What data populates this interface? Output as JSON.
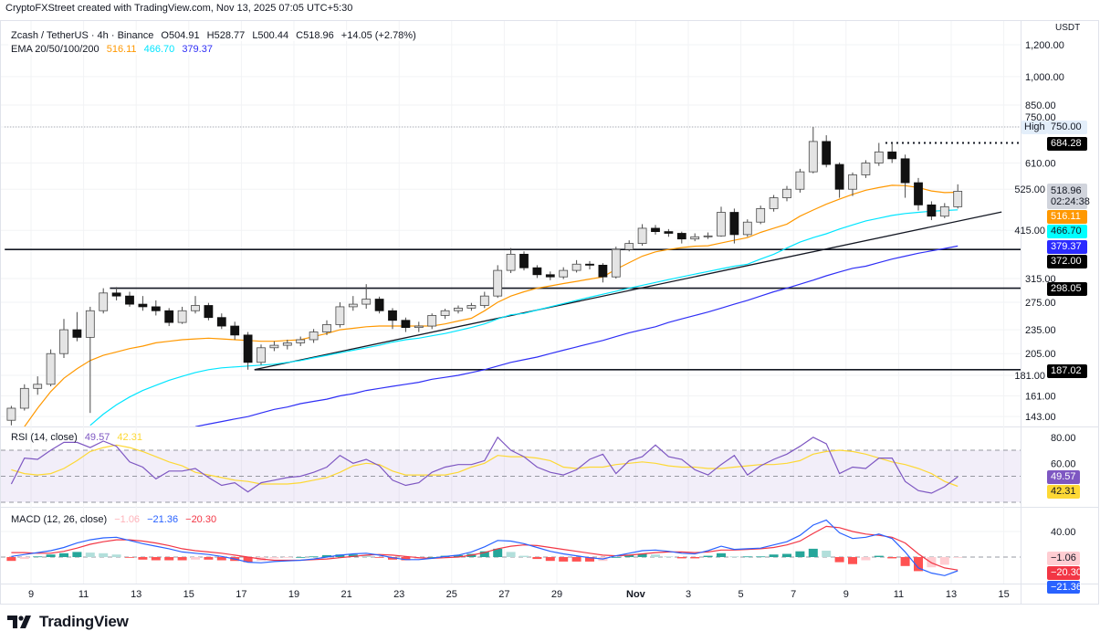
{
  "credit": "CryptoFXStreet created with TradingView.com, Nov 13, 2025 07:05 UTC+5:30",
  "legend": {
    "symbol": "Zcash / TetherUS · 4h · Binance",
    "open": "O504.91",
    "high": "H528.77",
    "low": "L500.44",
    "close": "C518.96",
    "change": "+14.05 (+2.78%)",
    "ema_label": "EMA 20/50/100/200",
    "ema20": "516.11",
    "ema100": "466.70",
    "ema200": "379.37"
  },
  "rsi_legend": {
    "label": "RSI (14, close)",
    "rsi": "49.57",
    "ma": "42.31"
  },
  "macd_legend": {
    "label": "MACD (12, 26, close)",
    "hist": "−1.06",
    "macd": "−21.36",
    "signal": "−20.30"
  },
  "price_axis": {
    "unit": "USDT",
    "ticks": [
      "1,200.00",
      "1,000.00",
      "850.00",
      "750.00",
      "610.00",
      "525.00",
      "415.00",
      "315.00",
      "275.00",
      "235.00",
      "205.00",
      "181.00",
      "161.00",
      "143.00"
    ]
  },
  "rsi_axis": {
    "ticks": [
      "80.00",
      "60.00"
    ]
  },
  "macd_axis": {
    "ticks": [
      "40.00"
    ]
  },
  "time_axis": {
    "labels": [
      "9",
      "11",
      "13",
      "15",
      "17",
      "19",
      "21",
      "23",
      "25",
      "27",
      "29",
      "Nov",
      "3",
      "5",
      "7",
      "9",
      "11",
      "13",
      "15"
    ]
  },
  "badges": {
    "high_label": "High",
    "high": "750.00",
    "level_684": "684.28",
    "last": "518.96",
    "countdown": "02:24:38",
    "ema20": "516.11",
    "ema100": "466.70",
    "ema200": "379.37",
    "level_372": "372.00",
    "level_298": "298.05",
    "level_187": "187.02",
    "rsi": "49.57",
    "rsi_ma": "42.31",
    "macd_hist": "−1.06",
    "macd_signal": "−20.30",
    "macd": "−21.36"
  },
  "colors": {
    "ema20": "#ff9800",
    "ema100": "#00e5ff",
    "ema200": "#2f2ff5",
    "rsi": "#7e57c2",
    "rsi_ma": "#fdd835",
    "macd": "#2962ff",
    "signal": "#f23645",
    "hist_up_strong": "#26a69a",
    "hist_up_weak": "#b2dfdb",
    "hist_down_strong": "#ff5252",
    "hist_down_weak": "#ffcdd2",
    "candle_up": "#e4e4e4",
    "candle_down": "#111111"
  },
  "logo": {
    "text": "TradingView"
  },
  "chart_data": {
    "type": "candlestick",
    "symbol": "Zcash / TetherUS",
    "timeframe": "4h",
    "y_scale": "log",
    "ylim": [
      136,
      1300
    ],
    "candles_ohlc": [
      [
        "Oct 8 00:00",
        140,
        152,
        136,
        150
      ],
      [
        "Oct 8 12:00",
        150,
        172,
        148,
        168
      ],
      [
        "Oct 9 00:00",
        168,
        180,
        162,
        172
      ],
      [
        "Oct 9 12:00",
        172,
        210,
        170,
        205
      ],
      [
        "Oct 10 00:00",
        205,
        250,
        200,
        235
      ],
      [
        "Oct 10 12:00",
        235,
        260,
        220,
        225
      ],
      [
        "Oct 11 00:00",
        225,
        268,
        146,
        262
      ],
      [
        "Oct 11 12:00",
        262,
        298,
        258,
        290
      ],
      [
        "Oct 12 00:00",
        290,
        300,
        278,
        285
      ],
      [
        "Oct 12 12:00",
        285,
        292,
        268,
        272
      ],
      [
        "Oct 13 00:00",
        272,
        285,
        262,
        268
      ],
      [
        "Oct 13 12:00",
        268,
        278,
        255,
        262
      ],
      [
        "Oct 14 00:00",
        262,
        266,
        240,
        245
      ],
      [
        "Oct 14 12:00",
        245,
        268,
        243,
        262
      ],
      [
        "Oct 15 00:00",
        262,
        285,
        258,
        270
      ],
      [
        "Oct 15 12:00",
        270,
        274,
        248,
        252
      ],
      [
        "Oct 16 00:00",
        252,
        258,
        236,
        240
      ],
      [
        "Oct 16 12:00",
        240,
        246,
        222,
        228
      ],
      [
        "Oct 17 00:00",
        228,
        232,
        187,
        195
      ],
      [
        "Oct 17 12:00",
        195,
        216,
        192,
        212
      ],
      [
        "Oct 18 00:00",
        212,
        220,
        208,
        215
      ],
      [
        "Oct 18 12:00",
        215,
        222,
        210,
        218
      ],
      [
        "Oct 19 00:00",
        218,
        226,
        214,
        222
      ],
      [
        "Oct 19 12:00",
        222,
        236,
        218,
        232
      ],
      [
        "Oct 20 00:00",
        232,
        248,
        228,
        242
      ],
      [
        "Oct 20 12:00",
        242,
        275,
        238,
        268
      ],
      [
        "Oct 21 00:00",
        268,
        285,
        262,
        272
      ],
      [
        "Oct 21 12:00",
        272,
        305,
        265,
        280
      ],
      [
        "Oct 22 00:00",
        280,
        284,
        258,
        262
      ],
      [
        "Oct 22 12:00",
        262,
        266,
        236,
        248
      ],
      [
        "Oct 23 00:00",
        248,
        252,
        232,
        238
      ],
      [
        "Oct 23 12:00",
        238,
        246,
        232,
        240
      ],
      [
        "Oct 24 00:00",
        240,
        258,
        236,
        255
      ],
      [
        "Oct 24 12:00",
        255,
        265,
        250,
        262
      ],
      [
        "Oct 25 00:00",
        262,
        270,
        258,
        266
      ],
      [
        "Oct 25 12:00",
        266,
        274,
        262,
        270
      ],
      [
        "Oct 26 00:00",
        270,
        292,
        266,
        285
      ],
      [
        "Oct 26 12:00",
        285,
        340,
        282,
        330
      ],
      [
        "Oct 27 00:00",
        330,
        375,
        325,
        362
      ],
      [
        "Oct 27 12:00",
        362,
        368,
        330,
        335
      ],
      [
        "Oct 28 00:00",
        335,
        340,
        316,
        322
      ],
      [
        "Oct 28 12:00",
        322,
        328,
        312,
        318
      ],
      [
        "Oct 29 00:00",
        318,
        336,
        314,
        330
      ],
      [
        "Oct 29 12:00",
        330,
        350,
        326,
        342
      ],
      [
        "Oct 30 00:00",
        342,
        348,
        332,
        340
      ],
      [
        "Oct 30 12:00",
        340,
        344,
        308,
        318
      ],
      [
        "Oct 31 00:00",
        318,
        378,
        315,
        372
      ],
      [
        "Oct 31 12:00",
        372,
        392,
        368,
        385
      ],
      [
        "Nov 1 00:00",
        385,
        430,
        380,
        420
      ],
      [
        "Nov 1 12:00",
        420,
        428,
        405,
        412
      ],
      [
        "Nov 2 00:00",
        412,
        418,
        400,
        408
      ],
      [
        "Nov 2 12:00",
        408,
        412,
        385,
        395
      ],
      [
        "Nov 3 00:00",
        395,
        408,
        390,
        400
      ],
      [
        "Nov 3 12:00",
        400,
        410,
        395,
        402
      ],
      [
        "Nov 4 00:00",
        402,
        475,
        400,
        460
      ],
      [
        "Nov 4 12:00",
        460,
        470,
        385,
        405
      ],
      [
        "Nov 5 00:00",
        405,
        442,
        400,
        435
      ],
      [
        "Nov 5 12:00",
        435,
        478,
        430,
        470
      ],
      [
        "Nov 6 00:00",
        470,
        508,
        462,
        500
      ],
      [
        "Nov 6 12:00",
        500,
        535,
        490,
        525
      ],
      [
        "Nov 7 00:00",
        525,
        590,
        515,
        580
      ],
      [
        "Nov 7 12:00",
        580,
        750,
        575,
        690
      ],
      [
        "Nov 8 00:00",
        690,
        715,
        595,
        605
      ],
      [
        "Nov 8 12:00",
        605,
        612,
        500,
        525
      ],
      [
        "Nov 9 00:00",
        525,
        578,
        505,
        570
      ],
      [
        "Nov 9 12:00",
        570,
        620,
        560,
        610
      ],
      [
        "Nov 10 00:00",
        610,
        684.28,
        600,
        650
      ],
      [
        "Nov 10 12:00",
        650,
        684,
        610,
        625
      ],
      [
        "Nov 11 00:00",
        625,
        640,
        500,
        545
      ],
      [
        "Nov 11 12:00",
        545,
        560,
        465,
        480
      ],
      [
        "Nov 12 00:00",
        480,
        490,
        440,
        450
      ],
      [
        "Nov 12 12:00",
        450,
        485,
        445,
        475
      ],
      [
        "Nov 13 00:00",
        475,
        540,
        470,
        518.96
      ]
    ],
    "ema20": [
      null,
      135,
      150,
      165,
      178,
      188,
      197,
      203,
      207,
      211,
      214,
      218,
      220,
      222,
      223,
      224,
      223,
      222,
      221,
      220,
      220,
      221,
      222,
      226,
      230,
      235,
      237,
      239,
      240,
      240,
      240,
      240,
      240,
      243,
      247,
      251,
      262,
      275,
      285,
      292,
      298,
      302,
      306,
      310,
      314,
      318,
      332,
      345,
      358,
      367,
      372,
      376,
      379,
      380,
      386,
      392,
      398,
      410,
      420,
      430,
      450,
      466,
      482,
      496,
      510,
      522,
      530,
      537,
      536,
      530,
      520,
      515,
      516.11
    ],
    "ema100": [
      null,
      null,
      null,
      null,
      null,
      null,
      136,
      145,
      153,
      160,
      166,
      171,
      176,
      180,
      184,
      187,
      189,
      190,
      191,
      192,
      193,
      195,
      197,
      200,
      203,
      206,
      209,
      212,
      215,
      219,
      222,
      224,
      227,
      230,
      234,
      238,
      243,
      250,
      256,
      258,
      263,
      268,
      273,
      278,
      283,
      288,
      293,
      298,
      303,
      308,
      313,
      318,
      323,
      328,
      333,
      338,
      342,
      352,
      362,
      375,
      388,
      398,
      407,
      418,
      428,
      438,
      445,
      452,
      457,
      460,
      463,
      465,
      466.7
    ],
    "ema200": [
      null,
      null,
      null,
      null,
      null,
      null,
      null,
      null,
      null,
      null,
      null,
      null,
      null,
      null,
      135,
      137,
      139,
      141,
      143,
      146,
      149,
      151,
      154,
      156,
      158,
      161,
      163,
      166,
      168,
      170,
      172,
      174,
      177,
      179,
      181,
      184,
      187,
      191,
      195,
      198,
      201,
      205,
      209,
      213,
      217,
      221,
      226,
      231,
      235,
      239,
      245,
      250,
      255,
      260,
      266,
      272,
      278,
      285,
      292,
      298,
      305,
      312,
      320,
      327,
      334,
      338,
      345,
      352,
      358,
      364,
      369,
      374,
      379.37
    ],
    "levels": [
      {
        "price": 750.0,
        "from": "Oct 8 00:00",
        "style": "dotted-grey"
      },
      {
        "price": 684.28,
        "from": "Nov 10 12:00",
        "style": "dotted"
      },
      {
        "price": 372.0,
        "from": "Oct 8 00:00",
        "style": "solid"
      },
      {
        "price": 298.05,
        "from": "Oct 12 00:00",
        "style": "solid"
      },
      {
        "price": 187.02,
        "from": "Oct 17 12:00",
        "style": "solid"
      }
    ],
    "trendline": {
      "from": {
        "time": "Oct 17 12:00",
        "price": 187.02
      },
      "to": {
        "time": "Nov 14 22:00",
        "price": 461
      }
    },
    "rsi": {
      "values": [
        44,
        64,
        63,
        70,
        76,
        76,
        72,
        77,
        73,
        61,
        57,
        48,
        54,
        54,
        56,
        49,
        43,
        45,
        38,
        45,
        47,
        49,
        50,
        53,
        57,
        66,
        60,
        63,
        58,
        47,
        43,
        45,
        53,
        57,
        59,
        59,
        62,
        80,
        70,
        65,
        57,
        53,
        51,
        55,
        63,
        67,
        52,
        62,
        65,
        74,
        65,
        63,
        55,
        51,
        59,
        66,
        51,
        58,
        63,
        67,
        73,
        80,
        75,
        52,
        57,
        56,
        64,
        64,
        46,
        39,
        37,
        42,
        49.57
      ],
      "ma": [
        55,
        52,
        51,
        52,
        56,
        62,
        69,
        72,
        74,
        72,
        69,
        65,
        61,
        58,
        53,
        51,
        49,
        47,
        46,
        44,
        44,
        44,
        45,
        47,
        49,
        53,
        58,
        60,
        59,
        54,
        51,
        51,
        51,
        51,
        53,
        57,
        60,
        66,
        65,
        65,
        64,
        62,
        57,
        56,
        57,
        57,
        59,
        60,
        61,
        60,
        58,
        57,
        57,
        56,
        56,
        57,
        58,
        59,
        59,
        60,
        62,
        67,
        69,
        70,
        69,
        67,
        64,
        61,
        59,
        56,
        52,
        46,
        42.31
      ],
      "bands": [
        70,
        50,
        30
      ]
    },
    "macd": {
      "macd": [
        1,
        4,
        7,
        10,
        15,
        22,
        27,
        30,
        31,
        26,
        21,
        17,
        13,
        8,
        6,
        4,
        1,
        -3,
        -8,
        -9,
        -7,
        -6,
        -5,
        -3,
        0,
        3,
        5,
        6,
        3,
        -1,
        -4,
        -4,
        -2,
        1,
        3,
        8,
        16,
        26,
        25,
        21,
        15,
        9,
        5,
        2,
        -1,
        -3,
        2,
        6,
        10,
        11,
        9,
        6,
        5,
        10,
        17,
        12,
        13,
        14,
        19,
        24,
        34,
        50,
        58,
        38,
        29,
        31,
        36,
        29,
        8,
        -17,
        -25,
        -29,
        -21.36
      ],
      "signal": [
        7,
        7,
        6,
        6,
        9,
        14,
        20,
        24,
        27,
        27,
        25,
        22,
        18,
        13,
        10,
        8,
        6,
        3,
        0,
        -3,
        -5,
        -5,
        -5,
        -4,
        -3,
        -1,
        1,
        3,
        4,
        3,
        1,
        -1,
        -2,
        -1,
        0,
        3,
        7,
        13,
        17,
        19,
        18,
        15,
        12,
        9,
        6,
        3,
        2,
        3,
        5,
        7,
        8,
        8,
        7,
        8,
        11,
        11,
        12,
        13,
        15,
        19,
        25,
        37,
        48,
        46,
        40,
        36,
        34,
        31,
        22,
        5,
        -9,
        -17,
        -20.3
      ]
    }
  }
}
